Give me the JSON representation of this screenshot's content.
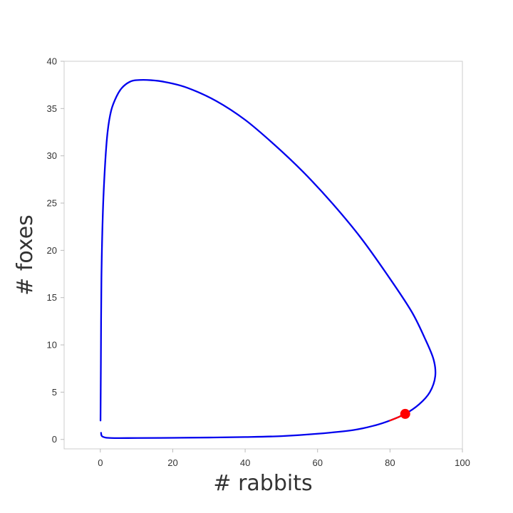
{
  "chart_data": {
    "type": "line",
    "title": "",
    "xlabel": "# rabbits",
    "ylabel": "# foxes",
    "xlim": [
      -10,
      100
    ],
    "ylim": [
      -1,
      40
    ],
    "xticks": [
      0,
      20,
      40,
      60,
      80,
      100
    ],
    "yticks": [
      0,
      5,
      10,
      15,
      20,
      25,
      30,
      35,
      40
    ],
    "grid": false,
    "legend": "none",
    "colors": {
      "trajectory": "#0000ee",
      "recent": "#ff0000",
      "current": "#ff0000"
    },
    "series": [
      {
        "x": [
          0.2,
          0.6,
          3.0,
          10.0,
          20.0,
          30.0,
          40.0,
          50.0,
          60.0,
          70.0,
          76.0,
          80.0,
          84.2,
          88.0,
          91.0,
          92.5,
          92.0,
          89.5,
          86.0,
          80.0,
          72.0,
          64.0,
          56.0,
          48.0,
          40.0,
          32.0,
          24.0,
          18.0,
          14.0,
          10.0,
          8.0,
          6.0,
          4.5,
          3.0,
          2.0,
          1.3,
          0.7,
          0.3,
          0.15,
          0.05
        ],
        "y": [
          0.7,
          0.3,
          0.15,
          0.15,
          0.17,
          0.2,
          0.25,
          0.35,
          0.6,
          1.0,
          1.5,
          2.0,
          2.7,
          3.7,
          5.0,
          6.7,
          8.5,
          10.8,
          13.5,
          17.0,
          21.3,
          25.0,
          28.3,
          31.2,
          33.8,
          35.8,
          37.2,
          37.8,
          38.0,
          38.0,
          37.8,
          37.2,
          36.3,
          34.8,
          32.5,
          29.0,
          24.0,
          17.0,
          8.0,
          2.0
        ]
      },
      {
        "x": [
          80.0,
          82.0,
          84.2
        ],
        "y": [
          2.0,
          2.3,
          2.7
        ]
      }
    ],
    "current_point": {
      "x": 84.2,
      "y": 2.7
    }
  }
}
